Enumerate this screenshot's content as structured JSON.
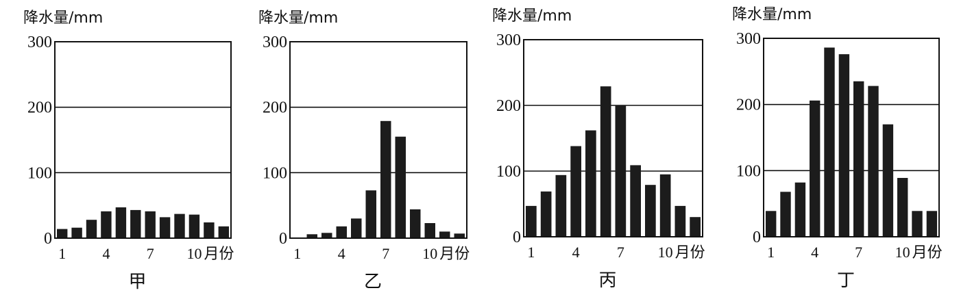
{
  "chart_data": [
    {
      "type": "bar",
      "title": "甲",
      "ylabel": "降水量/mm",
      "xlabel": "月份",
      "ylim": [
        0,
        300
      ],
      "yticks": [
        "0",
        "100",
        "200",
        "300"
      ],
      "xticks": [
        "1",
        "4",
        "7",
        "10"
      ],
      "x_unit": "月份",
      "categories": [
        1,
        2,
        3,
        4,
        5,
        6,
        7,
        8,
        9,
        10,
        11,
        12
      ],
      "values": [
        14,
        16,
        28,
        41,
        47,
        43,
        41,
        32,
        37,
        36,
        24,
        18
      ],
      "grid": true
    },
    {
      "type": "bar",
      "title": "乙",
      "ylabel": "降水量/mm",
      "xlabel": "月份",
      "ylim": [
        0,
        300
      ],
      "yticks": [
        "0",
        "100",
        "200",
        "300"
      ],
      "xticks": [
        "1",
        "4",
        "7",
        "10"
      ],
      "x_unit": "月份",
      "categories": [
        1,
        2,
        3,
        4,
        5,
        6,
        7,
        8,
        9,
        10,
        11,
        12
      ],
      "values": [
        1,
        6,
        8,
        18,
        30,
        73,
        179,
        155,
        44,
        23,
        10,
        7
      ],
      "grid": true
    },
    {
      "type": "bar",
      "title": "丙",
      "ylabel": "降水量/mm",
      "xlabel": "月份",
      "ylim": [
        0,
        300
      ],
      "yticks": [
        "0",
        "100",
        "200",
        "300"
      ],
      "xticks": [
        "1",
        "4",
        "7",
        "10"
      ],
      "x_unit": "月份",
      "categories": [
        1,
        2,
        3,
        4,
        5,
        6,
        7,
        8,
        9,
        10,
        11,
        12
      ],
      "values": [
        47,
        69,
        94,
        138,
        162,
        229,
        200,
        109,
        79,
        95,
        47,
        30
      ],
      "grid": true
    },
    {
      "type": "bar",
      "title": "丁",
      "ylabel": "降水量/mm",
      "xlabel": "月份",
      "ylim": [
        0,
        300
      ],
      "yticks": [
        "0",
        "100",
        "200",
        "300"
      ],
      "xticks": [
        "1",
        "4",
        "7",
        "10"
      ],
      "x_unit": "月份",
      "categories": [
        1,
        2,
        3,
        4,
        5,
        6,
        7,
        8,
        9,
        10,
        11,
        12
      ],
      "values": [
        39,
        68,
        82,
        206,
        286,
        276,
        235,
        228,
        170,
        89,
        39,
        39
      ],
      "grid": true
    }
  ]
}
